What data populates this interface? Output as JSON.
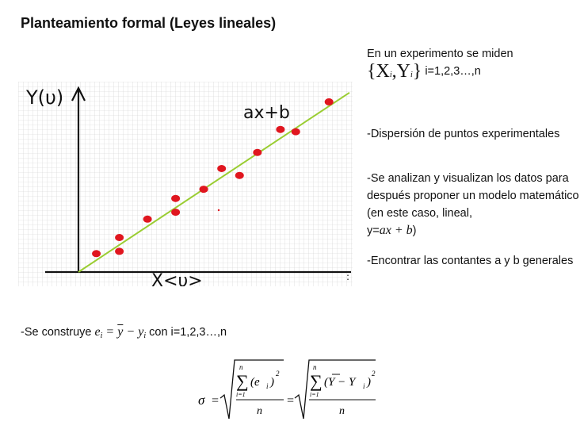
{
  "title": "Planteamiento formal (Leyes lineales)",
  "graph": {
    "y_label": "Y(υ)",
    "x_label": "X<υ>",
    "fit_label": "ax+b",
    "colors": {
      "grid": "#c8c8c8",
      "axis": "#111111",
      "fit_line": "#9acd32",
      "points": "#e0161f"
    }
  },
  "chart_data": {
    "type": "scatter",
    "title": "",
    "xlabel": "X<υ>",
    "ylabel": "Y(υ)",
    "points": [
      {
        "x": 0.7,
        "y": 0.8
      },
      {
        "x": 1.6,
        "y": 1.5
      },
      {
        "x": 1.6,
        "y": 0.9
      },
      {
        "x": 2.7,
        "y": 2.3
      },
      {
        "x": 3.8,
        "y": 3.2
      },
      {
        "x": 3.8,
        "y": 2.6
      },
      {
        "x": 4.9,
        "y": 3.6
      },
      {
        "x": 5.6,
        "y": 4.5
      },
      {
        "x": 6.3,
        "y": 4.2
      },
      {
        "x": 7.0,
        "y": 5.2
      },
      {
        "x": 7.9,
        "y": 6.2
      },
      {
        "x": 8.5,
        "y": 6.1
      },
      {
        "x": 9.8,
        "y": 7.4
      }
    ],
    "fit_line": {
      "label": "ax+b",
      "x": [
        0,
        10.6
      ],
      "y": [
        0,
        7.8
      ]
    },
    "xlim": [
      0,
      10.6
    ],
    "ylim": [
      0,
      8.0
    ],
    "grid": true
  },
  "right_text": {
    "p1_text": "En un experimento se miden",
    "p1_math": "{X",
    "p1_sub_i": "i",
    "p1_math_y": ",Y",
    "p1_sub_i2": "i",
    "p1_brace_close": "}",
    "p1_suffix": "i=1,2,3…,n",
    "p2": "-Dispersión de puntos experimentales",
    "p3": "-Se analizan y visualizan los datos para después proponer un modelo matemático (en este caso, lineal,",
    "p3_prefix": "y=",
    "p3_math": "ax + b",
    "p3_close": ")",
    "p4": "-Encontrar las contantes a y b generales"
  },
  "bottom": {
    "prefix": "-Se construye",
    "eq_e": "e",
    "eq_sub_i": "i",
    "eq_mid": "=",
    "eq_ybar": "y",
    "eq_minus": "−",
    "eq_y": "y",
    "eq_sub_i2": "i",
    "suffix": "con i=1,2,3…,n"
  },
  "sigma_formula": {
    "sigma": "σ",
    "equals": "=",
    "sum_upper": "n",
    "sum_lower": "i=1",
    "term1": "(e",
    "term1_sub": "i",
    "term1_close": ")",
    "power": "2",
    "denominator": "n",
    "term2": "(Y − Y",
    "term2_sub": "i",
    "term2_close": ")"
  }
}
